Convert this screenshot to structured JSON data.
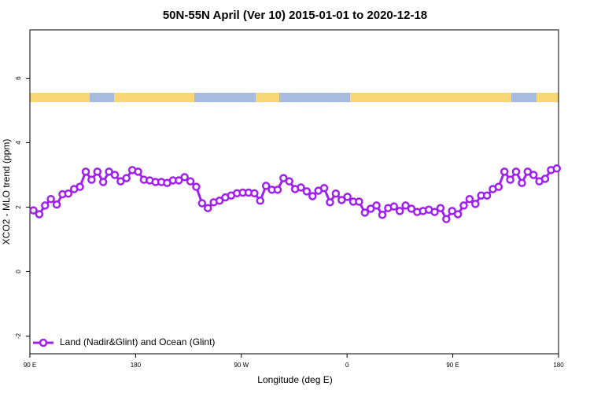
{
  "chart_data": {
    "type": "line",
    "title": "50N-55N April (Ver 10)   2015-01-01 to 2020-12-18",
    "x_label": "Longitude (deg E)",
    "y_label": "XCO2 - MLO trend (ppm)",
    "x": [
      93,
      97.95,
      102.9,
      107.85,
      112.8,
      117.75,
      122.7,
      127.65,
      132.6,
      137.55,
      142.5,
      147.45,
      152.4,
      157.35,
      162.3,
      167.25,
      172.2,
      177.15,
      182.1,
      187.05,
      192,
      196.95,
      201.9,
      206.85,
      211.8,
      216.75,
      221.7,
      226.65,
      231.6,
      236.55,
      241.5,
      246.45,
      251.4,
      256.35,
      261.3,
      266.25,
      271.2,
      276.15,
      281.1,
      286.05,
      291,
      295.95,
      300.9,
      305.85,
      310.8,
      315.75,
      320.7,
      325.65,
      330.6,
      335.55,
      340.5,
      345.45,
      350.4,
      355.35,
      360.3,
      365.25,
      370.2,
      375.15,
      380.1,
      385.05,
      390,
      394.95,
      399.9,
      404.85,
      409.8,
      414.75,
      419.7,
      424.65,
      429.6,
      434.55,
      439.5,
      444.45,
      449.4,
      454.35,
      459.3,
      464.25,
      469.2,
      474.15,
      479.1,
      484.05,
      489,
      493.95,
      498.9,
      503.85,
      508.8,
      513.75,
      518.7,
      523.65,
      528.6,
      533.55,
      538.5
    ],
    "series": [
      {
        "name": "Land (Nadir&Glint) and Ocean (Glint)",
        "color": "#a020f0",
        "values": [
          1.9,
          1.78,
          2.05,
          2.25,
          2.08,
          2.4,
          2.42,
          2.56,
          2.63,
          3.1,
          2.85,
          3.1,
          2.78,
          3.1,
          3.0,
          2.8,
          2.9,
          3.15,
          3.1,
          2.85,
          2.83,
          2.78,
          2.78,
          2.75,
          2.83,
          2.83,
          2.93,
          2.8,
          2.63,
          2.12,
          1.97,
          2.15,
          2.2,
          2.3,
          2.36,
          2.43,
          2.45,
          2.45,
          2.43,
          2.2,
          2.66,
          2.54,
          2.54,
          2.9,
          2.8,
          2.56,
          2.61,
          2.49,
          2.34,
          2.51,
          2.59,
          2.15,
          2.42,
          2.22,
          2.32,
          2.17,
          2.17,
          1.83,
          1.95,
          2.05,
          1.76,
          1.97,
          2.02,
          1.88,
          2.05,
          1.95,
          1.85,
          1.88,
          1.92,
          1.85,
          1.97,
          1.63,
          1.88,
          1.78,
          2.05,
          2.25,
          2.1,
          2.36,
          2.36,
          2.56,
          2.63,
          3.1,
          2.85,
          3.1,
          2.75,
          3.1,
          3.0,
          2.8,
          2.88,
          3.15,
          3.2
        ]
      }
    ],
    "xlim": [
      90,
      540
    ],
    "xticks": [
      {
        "value": 90,
        "label": "90 E"
      },
      180,
      {
        "value": 270,
        "label": "90 W"
      },
      {
        "value": 360,
        "label": "0"
      },
      {
        "value": 450,
        "label": "90 E"
      },
      {
        "value": 540,
        "label": "180"
      }
    ],
    "ylim": [
      -2.55,
      7.5
    ],
    "yticks": [
      -2,
      0,
      2,
      4,
      6
    ],
    "legend": "bottomleft"
  }
}
